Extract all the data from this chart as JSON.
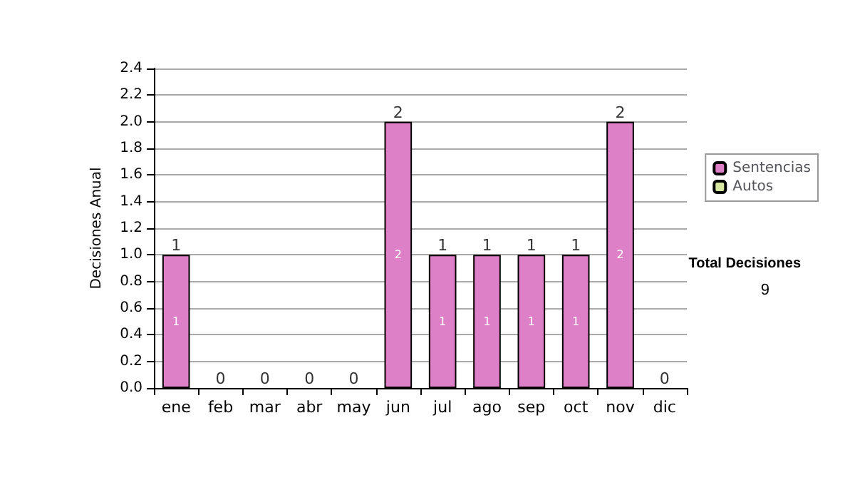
{
  "chart_data": {
    "type": "bar",
    "stacked": true,
    "ylabel": "Decisiones Anual",
    "categories": [
      "ene",
      "feb",
      "mar",
      "abr",
      "may",
      "jun",
      "jul",
      "ago",
      "sep",
      "oct",
      "nov",
      "dic"
    ],
    "series": [
      {
        "name": "Sentencias",
        "color": "#dd80c8",
        "values": [
          1,
          0,
          0,
          0,
          0,
          2,
          1,
          1,
          1,
          1,
          2,
          0
        ],
        "value_labels": [
          "1",
          null,
          null,
          null,
          null,
          "2",
          "1",
          "1",
          "1",
          "1",
          "2",
          null
        ]
      },
      {
        "name": "Autos",
        "color": "#d8e8a0",
        "values": [
          0,
          0,
          0,
          0,
          0,
          0,
          0,
          0,
          0,
          0,
          0,
          0
        ]
      }
    ],
    "totals": [
      "1",
      "0",
      "0",
      "0",
      "0",
      "2",
      "1",
      "1",
      "1",
      "1",
      "2",
      "0"
    ],
    "ylim": [
      0,
      2.4
    ],
    "yticks": [
      {
        "value": 0,
        "label": "0.0"
      },
      {
        "value": 0.2,
        "label": "0.2"
      },
      {
        "value": 0.4,
        "label": "0.4"
      },
      {
        "value": 0.6,
        "label": "0.6"
      },
      {
        "value": 0.8,
        "label": "0.8"
      },
      {
        "value": 1,
        "label": "1.0"
      },
      {
        "value": 1.2,
        "label": "1.2"
      },
      {
        "value": 1.4,
        "label": "1.4"
      },
      {
        "value": 1.6,
        "label": "1.6"
      },
      {
        "value": 1.8,
        "label": "1.8"
      },
      {
        "value": 2,
        "label": "2.0"
      },
      {
        "value": 2.2,
        "label": "2.2"
      },
      {
        "value": 2.4,
        "label": "2.4"
      }
    ],
    "grid": "y",
    "legend": "right",
    "annotations": [
      "Total Decisiones",
      "9"
    ]
  }
}
